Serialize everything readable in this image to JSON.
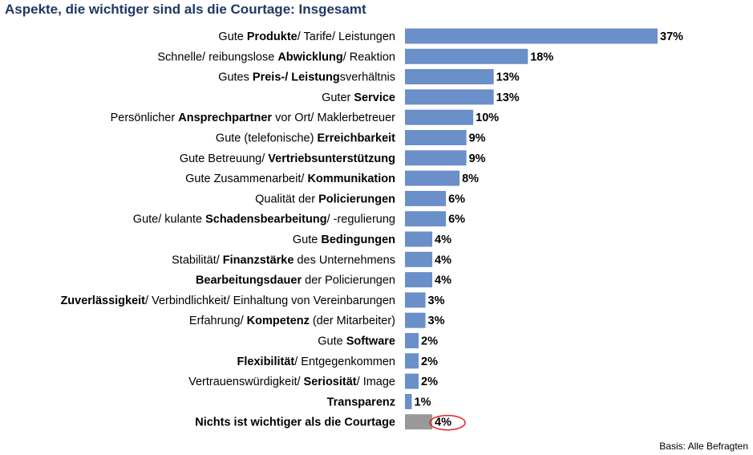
{
  "chart_data": {
    "type": "bar",
    "orientation": "horizontal",
    "title": "Aspekte, die wichtiger sind als die Courtage: Insgesamt",
    "unit": "%",
    "categories": [
      [
        {
          "t": "Gute "
        },
        {
          "t": "Produkte",
          "b": true
        },
        {
          "t": "/ Tarife/ Leistungen"
        }
      ],
      [
        {
          "t": "Schnelle/ reibungslose "
        },
        {
          "t": "Abwicklung",
          "b": true
        },
        {
          "t": "/ Reaktion"
        }
      ],
      [
        {
          "t": "Gutes "
        },
        {
          "t": "Preis-/ Leistung",
          "b": true
        },
        {
          "t": "sverhältnis"
        }
      ],
      [
        {
          "t": "Guter "
        },
        {
          "t": "Service",
          "b": true
        }
      ],
      [
        {
          "t": "Persönlicher "
        },
        {
          "t": "Ansprechpartner",
          "b": true
        },
        {
          "t": " vor Ort/ Maklerbetreuer"
        }
      ],
      [
        {
          "t": "Gute (telefonische) "
        },
        {
          "t": "Erreichbarkeit",
          "b": true
        }
      ],
      [
        {
          "t": "Gute Betreuung/ "
        },
        {
          "t": "Vertriebsunterstützung",
          "b": true
        }
      ],
      [
        {
          "t": "Gute Zusammenarbeit/ "
        },
        {
          "t": "Kommunikation",
          "b": true
        }
      ],
      [
        {
          "t": "Qualität der "
        },
        {
          "t": "Policierungen",
          "b": true
        }
      ],
      [
        {
          "t": "Gute/ kulante "
        },
        {
          "t": "Schadensbearbeitung",
          "b": true
        },
        {
          "t": "/ -regulierung"
        }
      ],
      [
        {
          "t": "Gute "
        },
        {
          "t": "Bedingungen",
          "b": true
        }
      ],
      [
        {
          "t": "Stabilität/ "
        },
        {
          "t": "Finanzstärke",
          "b": true
        },
        {
          "t": " des Unternehmens"
        }
      ],
      [
        {
          "t": "Bearbeitungsdauer",
          "b": true
        },
        {
          "t": " der Policierungen"
        }
      ],
      [
        {
          "t": "Zuverlässigkeit",
          "b": true
        },
        {
          "t": "/ Verbindlichkeit/ Einhaltung von Vereinbarungen"
        }
      ],
      [
        {
          "t": "Erfahrung/ "
        },
        {
          "t": "Kompetenz",
          "b": true
        },
        {
          "t": " (der Mitarbeiter)"
        }
      ],
      [
        {
          "t": "Gute "
        },
        {
          "t": "Software",
          "b": true
        }
      ],
      [
        {
          "t": "Flexibilität",
          "b": true
        },
        {
          "t": "/ Entgegenkommen"
        }
      ],
      [
        {
          "t": "Vertrauenswürdigkeit/ "
        },
        {
          "t": "Seriosität",
          "b": true
        },
        {
          "t": "/ Image"
        }
      ],
      [
        {
          "t": "Transparenz",
          "b": true
        }
      ],
      [
        {
          "t": "Nichts ist wichtiger als die Courtage",
          "b": true
        }
      ]
    ],
    "values": [
      37,
      18,
      13,
      13,
      10,
      9,
      9,
      8,
      6,
      6,
      4,
      4,
      4,
      3,
      3,
      2,
      2,
      2,
      1,
      4
    ],
    "value_labels": [
      "37%",
      "18%",
      "13%",
      "13%",
      "10%",
      "9%",
      "9%",
      "8%",
      "6%",
      "6%",
      "4%",
      "4%",
      "4%",
      "3%",
      "3%",
      "2%",
      "2%",
      "2%",
      "1%",
      "4%"
    ],
    "bar_colors": [
      "#6a8fc9",
      "#6a8fc9",
      "#6a8fc9",
      "#6a8fc9",
      "#6a8fc9",
      "#6a8fc9",
      "#6a8fc9",
      "#6a8fc9",
      "#6a8fc9",
      "#6a8fc9",
      "#6a8fc9",
      "#6a8fc9",
      "#6a8fc9",
      "#6a8fc9",
      "#6a8fc9",
      "#6a8fc9",
      "#6a8fc9",
      "#6a8fc9",
      "#6a8fc9",
      "#999999"
    ],
    "highlight_index": 19,
    "highlight_color": "#e02020",
    "xlim": [
      0,
      37
    ],
    "grid": false,
    "legend": "none"
  },
  "footnote": "Basis: Alle Befragten"
}
